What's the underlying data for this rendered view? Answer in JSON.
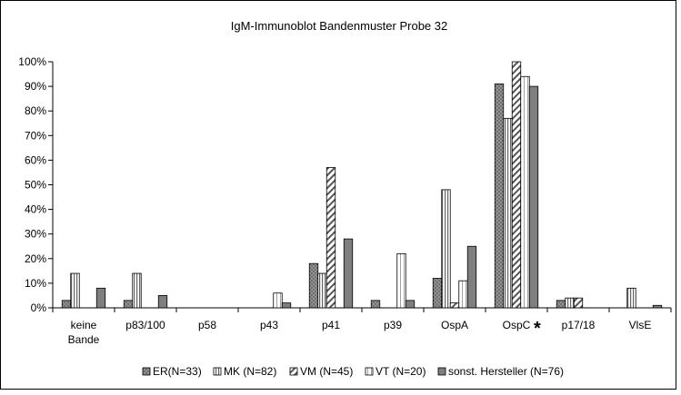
{
  "chart_data": {
    "type": "bar",
    "title": "IgM-Immunoblot Bandenmuster Probe 32",
    "xlabel": "",
    "ylabel": "",
    "ylim": [
      0,
      100
    ],
    "y_ticks": [
      "0%",
      "10%",
      "20%",
      "30%",
      "40%",
      "50%",
      "60%",
      "70%",
      "80%",
      "90%",
      "100%"
    ],
    "categories": [
      "keine Bande",
      "p83/100",
      "p58",
      "p43",
      "p41",
      "p39",
      "OspA",
      "OspC",
      "p17/18",
      "VlsE"
    ],
    "category_marker": {
      "category": "OspC",
      "text": "*"
    },
    "series": [
      {
        "name": "ER(N=33)",
        "values": [
          3,
          3,
          0,
          0,
          18,
          3,
          12,
          91,
          3,
          0
        ],
        "pattern": "dots",
        "color": "#7f7f7f"
      },
      {
        "name": "MK (N=82)",
        "values": [
          14,
          14,
          0,
          0,
          14,
          0,
          48,
          77,
          4,
          8
        ],
        "pattern": "vlines",
        "color": "#d9d9d9"
      },
      {
        "name": "VM (N=45)",
        "values": [
          0,
          0,
          0,
          0,
          57,
          0,
          2,
          100,
          4,
          0
        ],
        "pattern": "diagonal",
        "color": "#ffffff"
      },
      {
        "name": "VT (N=20)",
        "values": [
          0,
          0,
          0,
          6,
          0,
          22,
          11,
          94,
          0,
          0
        ],
        "pattern": "grid",
        "color": "#ffffff"
      },
      {
        "name": "sonst. Hersteller (N=76)",
        "values": [
          8,
          5,
          0,
          2,
          28,
          3,
          25,
          90,
          0,
          1
        ],
        "pattern": "solid",
        "color": "#7f7f7f"
      }
    ],
    "grid": false,
    "legend_position": "bottom"
  }
}
